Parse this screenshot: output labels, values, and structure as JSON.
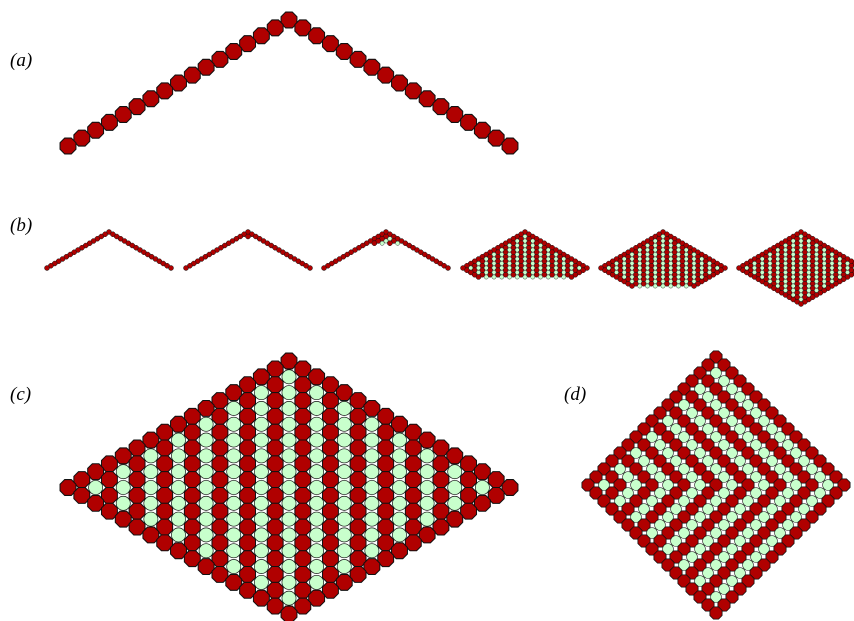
{
  "colors": {
    "occupied": "#b00000",
    "empty": "#c8ffcc",
    "stroke": "#111111"
  },
  "panels": [
    {
      "id": "a",
      "label": "(a)",
      "lattice": "chevron",
      "rows": 17,
      "filled_rows": 0
    },
    {
      "id": "b",
      "label": "(b)",
      "lattice": "growth-sequence",
      "stages": [
        {
          "filled_rows": 0
        },
        {
          "filled_rows": 3
        },
        {
          "filled_rows": 6
        },
        {
          "filled_rows": 10
        },
        {
          "filled_rows": 14
        },
        {
          "filled_rows": 17
        }
      ],
      "rows": 17
    },
    {
      "id": "c",
      "label": "(c)",
      "lattice": "diamond",
      "rows": 17,
      "pattern": "columns"
    },
    {
      "id": "d",
      "label": "(d)",
      "lattice": "square",
      "rows": 17,
      "pattern": "checker"
    }
  ]
}
